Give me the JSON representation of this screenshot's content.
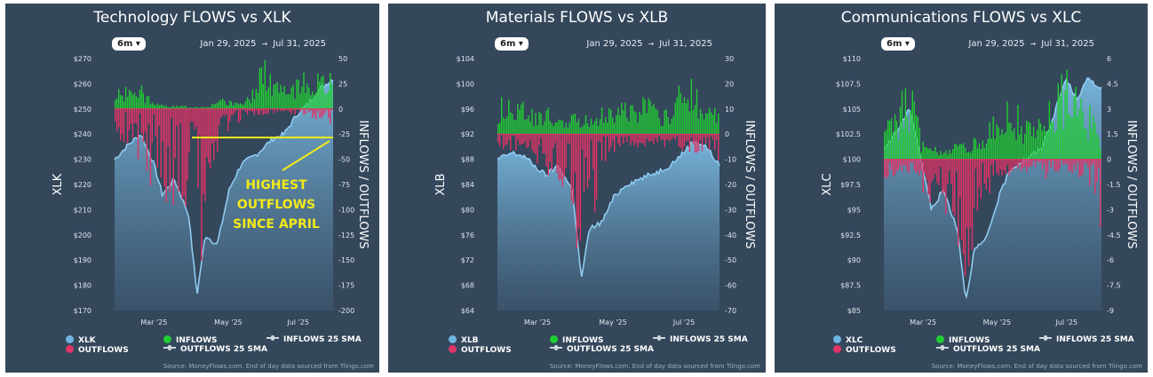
{
  "legend": {
    "price_color": "#6fb6e6",
    "inflows_label": "INFLOWS",
    "inflows_color": "#22cc33",
    "outflows_label": "OUTFLOWS",
    "outflows_color": "#e03366",
    "inflows_sma_label": "INFLOWS 25 SMA",
    "outflows_sma_label": "OUTFLOWS 25 SMA"
  },
  "source_text": "Source: MoneyFlows.com. End of day data sourced from Tiingo.com",
  "chart_data": [
    {
      "type": "bar",
      "title": "Technology FLOWS vs XLK",
      "period": "6m",
      "date_from": "Jan 29, 2025",
      "date_to": "Jul 31, 2025",
      "ylabel_left": "XLK",
      "ylabel_right": "INFLOWS / OUTFLOWS",
      "price_ticks": [
        "$270",
        "$260",
        "$250",
        "$240",
        "$230",
        "$220",
        "$210",
        "$200",
        "$190",
        "$180",
        "$170"
      ],
      "price_ylim": [
        170,
        270
      ],
      "flow_ticks": [
        "50",
        "25",
        "0",
        "-25",
        "-50",
        "-75",
        "-100",
        "-125",
        "-150",
        "-175",
        "-200"
      ],
      "flow_ylim": [
        -200,
        50
      ],
      "x_ticks": [
        "Mar '25",
        "May '25",
        "Jul '25"
      ],
      "price_series": {
        "name": "XLK",
        "x": [
          "Jan 29",
          "Feb 10",
          "Feb 20",
          "Mar 3",
          "Mar 10",
          "Mar 20",
          "Apr 1",
          "Apr 8",
          "Apr 15",
          "Apr 25",
          "May 5",
          "May 15",
          "May 28",
          "Jun 10",
          "Jun 20",
          "Jul 1",
          "Jul 10",
          "Jul 20",
          "Jul 31"
        ],
        "values": [
          230,
          236,
          240,
          228,
          216,
          222,
          208,
          176,
          200,
          196,
          218,
          228,
          232,
          238,
          240,
          248,
          252,
          258,
          262
        ]
      },
      "inflows": {
        "name": "INFLOWS",
        "x": [
          "Jan 29",
          "Feb 5",
          "Feb 12",
          "Feb 19",
          "Mar 1",
          "Mar 10",
          "Apr 10",
          "Apr 20",
          "May 1",
          "May 12",
          "May 22",
          "Jun 1",
          "Jun 10",
          "Jun 20",
          "Jul 1",
          "Jul 10",
          "Jul 20",
          "Jul 31"
        ],
        "values": [
          12,
          18,
          15,
          20,
          5,
          3,
          2,
          4,
          8,
          6,
          10,
          42,
          25,
          18,
          22,
          30,
          26,
          28
        ]
      },
      "outflows": {
        "name": "OUTFLOWS",
        "x": [
          "Jan 29",
          "Feb 5",
          "Feb 12",
          "Feb 19",
          "Mar 1",
          "Mar 10",
          "Mar 20",
          "Apr 1",
          "Apr 8",
          "Apr 15",
          "Apr 25",
          "May 5",
          "May 15",
          "Jun 1",
          "Jun 20",
          "Jul 10",
          "Jul 31"
        ],
        "values": [
          -20,
          -25,
          -30,
          -40,
          -60,
          -70,
          -75,
          -90,
          -190,
          -60,
          -40,
          -15,
          -10,
          -5,
          -3,
          -6,
          -12
        ]
      },
      "annotation": "HIGHEST OUTFLOWS SINCE APRIL"
    },
    {
      "type": "bar",
      "title": "Materials FLOWS vs XLB",
      "period": "6m",
      "date_from": "Jan 29, 2025",
      "date_to": "Jul 31, 2025",
      "ylabel_left": "XLB",
      "ylabel_right": "INFLOWS / OUTFLOWS",
      "price_ticks": [
        "$104",
        "$100",
        "$96",
        "$92",
        "$88",
        "$84",
        "$80",
        "$76",
        "$72",
        "$68",
        "$64"
      ],
      "price_ylim": [
        64,
        104
      ],
      "flow_ticks": [
        "30",
        "20",
        "10",
        "0",
        "-10",
        "-20",
        "-30",
        "-40",
        "-50",
        "-60",
        "-70"
      ],
      "flow_ylim": [
        -70,
        30
      ],
      "x_ticks": [
        "Mar '25",
        "May '25",
        "Jul '25"
      ],
      "price_series": {
        "name": "XLB",
        "x": [
          "Jan 29",
          "Feb 10",
          "Feb 20",
          "Mar 3",
          "Mar 10",
          "Mar 20",
          "Apr 1",
          "Apr 8",
          "Apr 15",
          "Apr 25",
          "May 5",
          "May 15",
          "May 28",
          "Jun 10",
          "Jun 20",
          "Jul 1",
          "Jul 10",
          "Jul 20",
          "Jul 31"
        ],
        "values": [
          88,
          89,
          88.5,
          86.5,
          85.5,
          87,
          83,
          69,
          77,
          78,
          82,
          84,
          85,
          86,
          87,
          89,
          91,
          90,
          87
        ]
      },
      "inflows": {
        "name": "INFLOWS",
        "x": [
          "Jan 29",
          "Feb 5",
          "Feb 12",
          "Feb 19",
          "Mar 1",
          "Mar 10",
          "Mar 20",
          "Apr 20",
          "May 1",
          "May 12",
          "May 22",
          "Jun 1",
          "Jun 10",
          "Jun 20",
          "Jul 1",
          "Jul 10",
          "Jul 20",
          "Jul 31"
        ],
        "values": [
          10,
          12,
          9,
          11,
          6,
          8,
          5,
          7,
          9,
          10,
          8,
          12,
          7,
          9,
          20,
          15,
          11,
          6
        ]
      },
      "outflows": {
        "name": "OUTFLOWS",
        "x": [
          "Jan 29",
          "Feb 12",
          "Feb 19",
          "Mar 1",
          "Mar 10",
          "Mar 20",
          "Apr 1",
          "Apr 8",
          "Apr 15",
          "Apr 25",
          "May 5",
          "May 22",
          "Jun 10",
          "Jul 1",
          "Jul 20",
          "Jul 31"
        ],
        "values": [
          -4,
          -6,
          -3,
          -8,
          -12,
          -15,
          -20,
          -63,
          -30,
          -10,
          -5,
          -4,
          -3,
          -6,
          -5,
          -12
        ]
      }
    },
    {
      "type": "bar",
      "title": "Communications FLOWS vs XLC",
      "period": "6m",
      "date_from": "Jan 29, 2025",
      "date_to": "Jul 31, 2025",
      "ylabel_left": "XLC",
      "ylabel_right": "INFLOWS / OUTFLOWS",
      "price_ticks": [
        "$110",
        "$107.5",
        "$105",
        "$102.5",
        "$100",
        "$97.5",
        "$95",
        "$92.5",
        "$90",
        "$87.5",
        "$85"
      ],
      "price_ylim": [
        85,
        110
      ],
      "flow_ticks": [
        "6",
        "4.5",
        "3",
        "1.5",
        "0",
        "-1.5",
        "-3",
        "-4.5",
        "-6",
        "-7.5",
        "-9"
      ],
      "flow_ylim": [
        -9,
        6
      ],
      "x_ticks": [
        "Mar '25",
        "May '25",
        "Jul '25"
      ],
      "price_series": {
        "name": "XLC",
        "x": [
          "Jan 29",
          "Feb 10",
          "Feb 20",
          "Mar 3",
          "Mar 10",
          "Mar 20",
          "Apr 1",
          "Apr 8",
          "Apr 15",
          "Apr 25",
          "May 5",
          "May 15",
          "May 28",
          "Jun 10",
          "Jun 20",
          "Jul 1",
          "Jul 10",
          "Jul 20",
          "Jul 31"
        ],
        "values": [
          101,
          103,
          105,
          99,
          95,
          97,
          93,
          86,
          91,
          92,
          96,
          99,
          100,
          101,
          104,
          108,
          106,
          108,
          107
        ]
      },
      "inflows": {
        "name": "INFLOWS",
        "x": [
          "Jan 29",
          "Feb 5",
          "Feb 12",
          "Feb 19",
          "Mar 1",
          "Mar 10",
          "Apr 20",
          "May 1",
          "May 12",
          "May 22",
          "Jun 1",
          "Jun 10",
          "Jun 20",
          "Jul 1",
          "Jul 10",
          "Jul 20",
          "Jul 31"
        ],
        "values": [
          1.5,
          2,
          3,
          4,
          1,
          0.5,
          1,
          2,
          3,
          2.5,
          1.5,
          2,
          3.5,
          4.5,
          3,
          2.5,
          1
        ]
      },
      "outflows": {
        "name": "OUTFLOWS",
        "x": [
          "Jan 29",
          "Feb 12",
          "Mar 1",
          "Mar 10",
          "Mar 20",
          "Apr 1",
          "Apr 8",
          "Apr 15",
          "Apr 25",
          "May 5",
          "May 22",
          "Jun 10",
          "Jul 1",
          "Jul 20",
          "Jul 31"
        ],
        "values": [
          -1,
          -0.5,
          -1.5,
          -2,
          -2.5,
          -4,
          -7.5,
          -3,
          -2,
          -1,
          -0.5,
          -1,
          -0.5,
          -1,
          -3.5
        ]
      }
    }
  ]
}
